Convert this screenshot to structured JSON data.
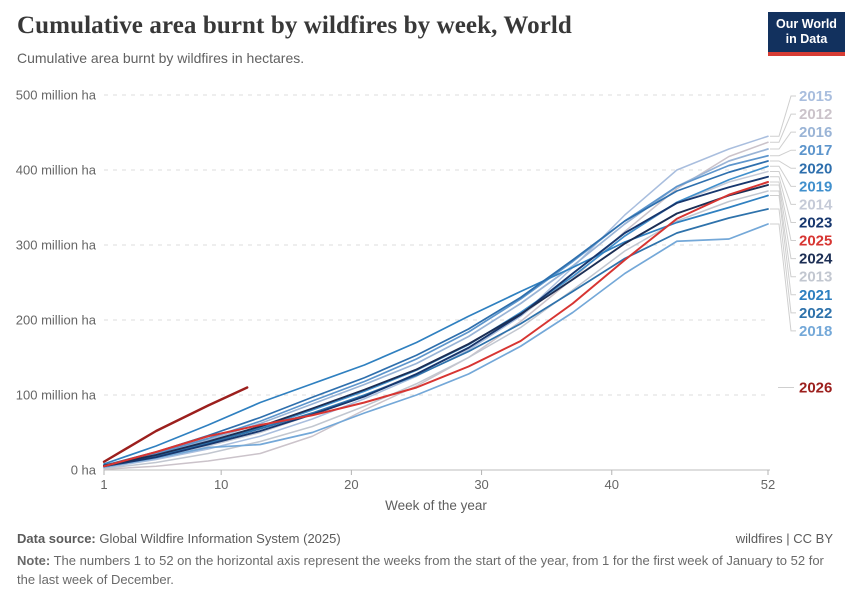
{
  "header": {
    "title": "Cumulative area burnt by wildfires by week, World",
    "subtitle": "Cumulative area burnt by wildfires in hectares.",
    "logo_line1": "Our World",
    "logo_line2": "in Data"
  },
  "chart_data": {
    "type": "line",
    "title": "Cumulative area burnt by wildfires by week, World",
    "xlabel": "Week of the year",
    "ylabel": "",
    "unit": "million hectares",
    "xlim": [
      1,
      52
    ],
    "ylim": [
      0,
      500
    ],
    "x_ticks": [
      1,
      10,
      20,
      30,
      40,
      52
    ],
    "y_ticks": [
      {
        "value": 0,
        "label": "0 ha"
      },
      {
        "value": 100,
        "label": "100 million ha"
      },
      {
        "value": 200,
        "label": "200 million ha"
      },
      {
        "value": 300,
        "label": "300 million ha"
      },
      {
        "value": 400,
        "label": "400 million ha"
      },
      {
        "value": 500,
        "label": "500 million ha"
      }
    ],
    "grid": "dashed-horizontal",
    "legend_position": "right",
    "weeks": [
      1,
      5,
      9,
      13,
      17,
      21,
      25,
      29,
      33,
      37,
      41,
      45,
      49,
      52
    ],
    "series": [
      {
        "name": "2015",
        "color": "#a9bede",
        "values": [
          3,
          14,
          28,
          45,
          68,
          95,
          125,
          160,
          205,
          270,
          340,
          400,
          428,
          445
        ]
      },
      {
        "name": "2012",
        "color": "#cbc3ca",
        "values": [
          1,
          5,
          12,
          22,
          45,
          80,
          112,
          150,
          198,
          255,
          318,
          375,
          418,
          437
        ]
      },
      {
        "name": "2016",
        "color": "#9ab4d6",
        "values": [
          5,
          20,
          40,
          62,
          88,
          114,
          142,
          178,
          222,
          272,
          328,
          378,
          412,
          428
        ]
      },
      {
        "name": "2017",
        "color": "#5d95cc",
        "values": [
          6,
          22,
          42,
          65,
          92,
          118,
          148,
          184,
          228,
          278,
          332,
          378,
          406,
          419
        ]
      },
      {
        "name": "2020",
        "color": "#2e6fad",
        "values": [
          6,
          24,
          46,
          70,
          97,
          123,
          153,
          188,
          230,
          280,
          332,
          372,
          397,
          412
        ]
      },
      {
        "name": "2019",
        "color": "#4190cd",
        "values": [
          5,
          18,
          36,
          56,
          80,
          105,
          133,
          167,
          210,
          258,
          312,
          357,
          387,
          405
        ]
      },
      {
        "name": "2014",
        "color": "#c5cad7",
        "values": [
          4,
          16,
          32,
          50,
          74,
          100,
          128,
          162,
          205,
          258,
          312,
          356,
          384,
          398
        ]
      },
      {
        "name": "2023",
        "color": "#17376e",
        "values": [
          5,
          17,
          34,
          52,
          74,
          98,
          128,
          163,
          207,
          262,
          316,
          356,
          377,
          391
        ]
      },
      {
        "name": "2025",
        "color": "#d73532",
        "values": [
          5,
          24,
          45,
          60,
          73,
          90,
          110,
          138,
          172,
          222,
          280,
          335,
          367,
          384
        ]
      },
      {
        "name": "2024",
        "color": "#1c2e54",
        "values": [
          6,
          20,
          38,
          58,
          82,
          107,
          134,
          168,
          208,
          254,
          302,
          342,
          366,
          380
        ]
      },
      {
        "name": "2013",
        "color": "#c2c7d0",
        "values": [
          2,
          10,
          22,
          38,
          58,
          85,
          115,
          150,
          190,
          240,
          292,
          332,
          358,
          372
        ]
      },
      {
        "name": "2021",
        "color": "#2f80c0",
        "values": [
          8,
          32,
          60,
          90,
          115,
          140,
          170,
          205,
          238,
          270,
          304,
          330,
          350,
          366
        ]
      },
      {
        "name": "2022",
        "color": "#2e72ab",
        "values": [
          5,
          18,
          36,
          55,
          76,
          100,
          126,
          158,
          195,
          238,
          282,
          316,
          336,
          348
        ]
      },
      {
        "name": "2018",
        "color": "#74a8d8",
        "values": [
          4,
          16,
          30,
          34,
          50,
          76,
          100,
          128,
          165,
          210,
          262,
          305,
          308,
          328
        ]
      }
    ],
    "partial_series": {
      "name": "2026",
      "color": "#9c1f1d",
      "weeks": [
        1,
        5,
        9,
        12
      ],
      "values": [
        11,
        52,
        86,
        110
      ]
    }
  },
  "footer": {
    "source_label": "Data source:",
    "source_text": "Global Wildfire Information System (2025)",
    "license": "wildfires | CC BY",
    "note_label": "Note:",
    "note_text": "The numbers 1 to 52 on the horizontal axis represent the weeks from the start of the year, from 1 for the first week of January to 52 for the last week of December."
  }
}
